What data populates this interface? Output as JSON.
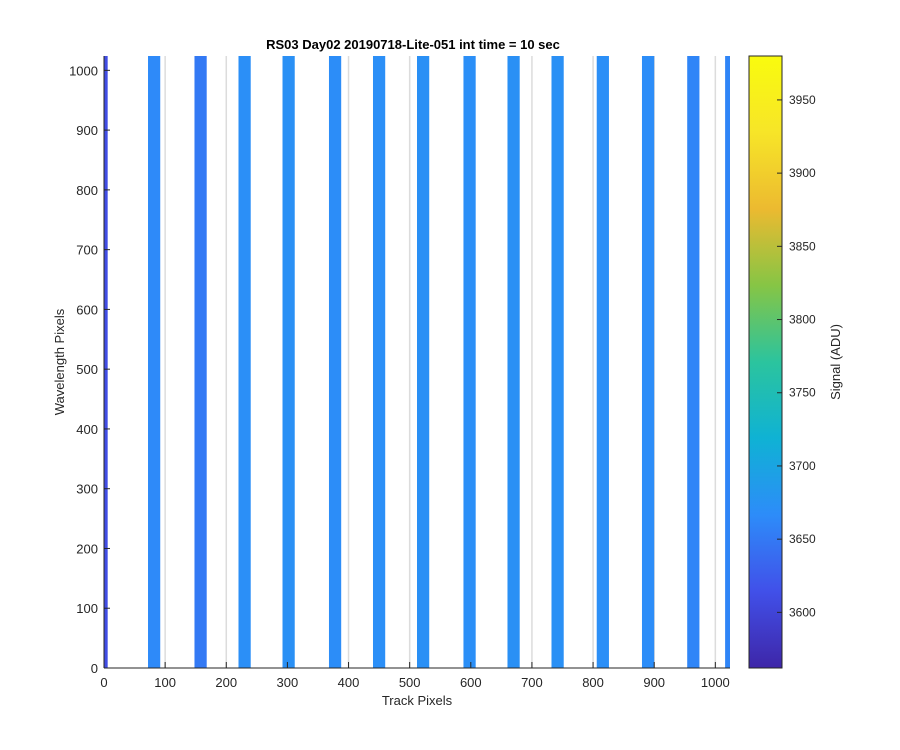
{
  "chart_data": {
    "type": "heatmap",
    "title": "RS03 Day02 20190718-Lite-051 int time = 10 sec",
    "xlabel": "Track Pixels",
    "ylabel": "Wavelength Pixels",
    "xlim": [
      0,
      1024
    ],
    "ylim": [
      0,
      1024
    ],
    "xticks": [
      0,
      100,
      200,
      300,
      400,
      500,
      600,
      700,
      800,
      900,
      1000
    ],
    "yticks": [
      0,
      100,
      200,
      300,
      400,
      500,
      600,
      700,
      800,
      900,
      1000
    ],
    "colorbar": {
      "label": "Signal (ADU)",
      "clim": [
        3562,
        3980
      ],
      "ticks": [
        3600,
        3650,
        3700,
        3750,
        3800,
        3850,
        3900,
        3950
      ]
    },
    "background_value": null,
    "stripes": [
      {
        "x_start": 0,
        "x_end": 6,
        "value": 3610
      },
      {
        "x_start": 72,
        "x_end": 92,
        "value": 3665
      },
      {
        "x_start": 148,
        "x_end": 168,
        "value": 3650
      },
      {
        "x_start": 220,
        "x_end": 240,
        "value": 3670
      },
      {
        "x_start": 292,
        "x_end": 312,
        "value": 3672
      },
      {
        "x_start": 368,
        "x_end": 388,
        "value": 3668
      },
      {
        "x_start": 440,
        "x_end": 460,
        "value": 3670
      },
      {
        "x_start": 512,
        "x_end": 532,
        "value": 3672
      },
      {
        "x_start": 588,
        "x_end": 608,
        "value": 3670
      },
      {
        "x_start": 660,
        "x_end": 680,
        "value": 3672
      },
      {
        "x_start": 732,
        "x_end": 752,
        "value": 3672
      },
      {
        "x_start": 806,
        "x_end": 826,
        "value": 3670
      },
      {
        "x_start": 880,
        "x_end": 900,
        "value": 3668
      },
      {
        "x_start": 954,
        "x_end": 974,
        "value": 3660
      },
      {
        "x_start": 1016,
        "x_end": 1024,
        "value": 3660
      }
    ],
    "colormap": [
      "#3e26a8",
      "#4150e9",
      "#2d8cf9",
      "#0fb2d4",
      "#2bc49e",
      "#86c545",
      "#ecba30",
      "#f7e528",
      "#f9fb0e"
    ]
  }
}
